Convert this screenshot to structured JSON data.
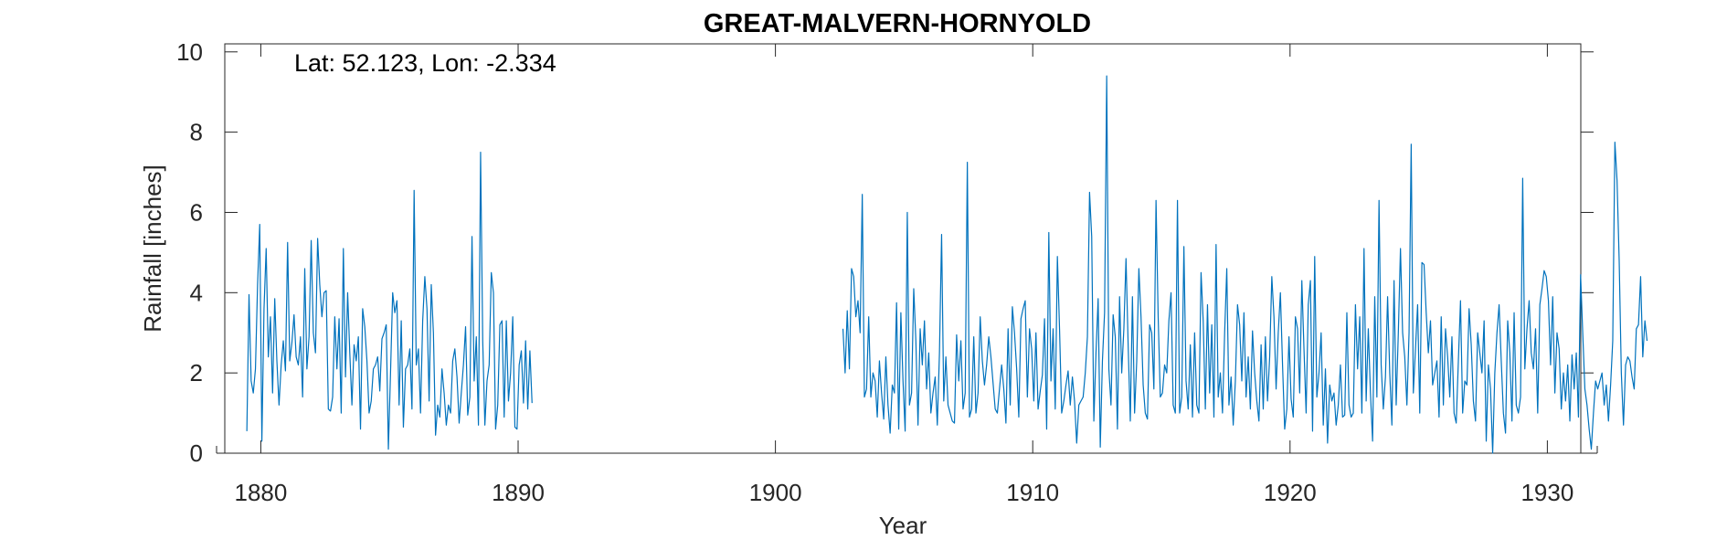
{
  "chart_data": {
    "type": "line",
    "title": "GREAT-MALVERN-HORNYOLD",
    "xlabel": "Year",
    "ylabel": "Rainfall [inches]",
    "annotation": "Lat: 52.123, Lon: -2.334",
    "xlim": [
      1878.6,
      1931.3
    ],
    "ylim": [
      0,
      10.2
    ],
    "xticks": [
      1880,
      1890,
      1900,
      1910,
      1920,
      1930
    ],
    "yticks": [
      0,
      2,
      4,
      6,
      8,
      10
    ],
    "grid": false,
    "box": true,
    "series_color": "#0072BD",
    "series": [
      {
        "segments": [
          {
            "start_year": 1879.458,
            "step_years": 0.0833333,
            "values": [
              0.55,
              3.95,
              1.8,
              1.5,
              2.1,
              4.2,
              5.7,
              0.3,
              3.6,
              5.1,
              2.4,
              3.4,
              1.5,
              3.85,
              2.3,
              1.2,
              2.2,
              2.8,
              2.05,
              5.25,
              2.3,
              2.75,
              3.45,
              2.4,
              2.2,
              2.9,
              1.4,
              4.6,
              2.1,
              2.9,
              5.3,
              3.0,
              2.5,
              5.35,
              4.2,
              3.4,
              4.0,
              4.05,
              1.1,
              1.05,
              1.4,
              3.4,
              2.1,
              3.35,
              1.0,
              5.1,
              1.9,
              4.0,
              2.5,
              1.2,
              2.7,
              2.3,
              2.9,
              0.6,
              3.6,
              3.15,
              2.3,
              1.0,
              1.3,
              2.1,
              2.2,
              2.4,
              1.55,
              2.85,
              3.0,
              3.2,
              0.1,
              2.0,
              4.0,
              3.5,
              3.8,
              1.2,
              3.3,
              0.65,
              2.1,
              2.2,
              2.6,
              1.1,
              6.55,
              2.2,
              2.6,
              1.0,
              3.3,
              4.4,
              3.6,
              1.3,
              4.2,
              3.0,
              0.45,
              1.2,
              0.9,
              2.1,
              1.5,
              0.7,
              1.2,
              1.0,
              2.3,
              2.6,
              1.9,
              0.75,
              1.5,
              2.2,
              3.15,
              0.95,
              1.4,
              5.4,
              1.8,
              2.9,
              0.7,
              7.5,
              2.8,
              0.7,
              1.8,
              2.2,
              4.5,
              4.0,
              0.6,
              1.2,
              3.2,
              3.3,
              0.9,
              3.3,
              1.3,
              2.0,
              3.4,
              0.65,
              0.6,
              2.2,
              2.55,
              1.25,
              2.8,
              1.1,
              2.55,
              1.25
            ]
          },
          {
            "start_year": 1902.625,
            "step_years": 0.0833333,
            "values": [
              3.1,
              2.0,
              3.55,
              2.1,
              4.6,
              4.4,
              3.4,
              3.8,
              3.0,
              6.45,
              1.4,
              1.6,
              3.4,
              1.4,
              2.0,
              1.8,
              0.9,
              2.3,
              1.5,
              0.85,
              2.4,
              1.2,
              0.5,
              1.7,
              1.5,
              3.75,
              0.6,
              3.5,
              1.8,
              0.55,
              6.0,
              1.2,
              1.5,
              4.1,
              2.8,
              0.7,
              3.1,
              2.2,
              3.3,
              1.6,
              2.5,
              1.0,
              1.5,
              1.9,
              0.7,
              2.5,
              5.45,
              1.3,
              2.4,
              1.2,
              1.0,
              0.8,
              0.75,
              2.95,
              1.8,
              2.8,
              1.1,
              1.5,
              7.25,
              0.9,
              1.1,
              2.9,
              1.0,
              1.5,
              3.4,
              2.3,
              1.7,
              2.2,
              2.9,
              2.4,
              1.75,
              1.1,
              1.0,
              1.6,
              2.2,
              1.6,
              0.75,
              3.1,
              1.2,
              3.65,
              3.0,
              2.1,
              0.9,
              3.35,
              3.6,
              3.8,
              1.4,
              3.1,
              2.6,
              1.3,
              3.0,
              1.1,
              1.55,
              1.95,
              3.35,
              0.6,
              5.5,
              1.8,
              3.1,
              1.1,
              4.9,
              3.1,
              1.0,
              1.3,
              1.7,
              2.05,
              1.2,
              1.9,
              1.3,
              0.25,
              1.2,
              1.3,
              1.4,
              2.0,
              2.9,
              6.5,
              5.4,
              0.8,
              2.5,
              3.85,
              0.15,
              2.3,
              3.5,
              9.4,
              2.1,
              1.2,
              3.45,
              2.9,
              0.6,
              3.9,
              2.0,
              3.1,
              4.85,
              2.7,
              0.8,
              3.9,
              1.0,
              2.3,
              4.6,
              3.4,
              1.7,
              1.0,
              0.85,
              3.2,
              3.0,
              1.6,
              6.3,
              3.4,
              1.4,
              1.5,
              2.2,
              2.0,
              3.3,
              4.0,
              1.2,
              1.0,
              6.3,
              1.0,
              1.4,
              5.15,
              1.8,
              1.1,
              2.7,
              0.9,
              3.0,
              1.2,
              1.0,
              4.5,
              3.3,
              1.1,
              3.7,
              1.5,
              3.2,
              0.9,
              5.2,
              1.4,
              2.0,
              1.0,
              3.0,
              4.6,
              1.2,
              1.9,
              0.7,
              1.8,
              3.7,
              3.2,
              1.8,
              3.5,
              1.4,
              2.4,
              1.1,
              3.05,
              2.0,
              1.3,
              0.8,
              2.7,
              1.1,
              2.9,
              1.3,
              2.4,
              4.4,
              3.4,
              1.6,
              3.0,
              4.0,
              2.2,
              0.6,
              1.1,
              2.9,
              1.35,
              0.9,
              3.4,
              3.1,
              1.5,
              4.3,
              2.6,
              1.0,
              3.7,
              4.3,
              0.55,
              4.9,
              1.4,
              2.0,
              3.0,
              0.7,
              2.1,
              0.25,
              1.7,
              1.3,
              1.5,
              0.7,
              1.2,
              2.2,
              0.9,
              0.95,
              3.5,
              1.2,
              0.9,
              1.0,
              3.7,
              2.1,
              3.4,
              1.0,
              5.1,
              1.3,
              3.1,
              1.5,
              0.3,
              3.9,
              1.4,
              6.3,
              2.2,
              1.1,
              1.9,
              3.9,
              2.0,
              0.7,
              4.3,
              1.2,
              3.0,
              5.1,
              3.0,
              2.4,
              1.2,
              3.0,
              7.7,
              1.5,
              2.6,
              3.7,
              1.0,
              4.75,
              4.7,
              3.5,
              2.5,
              3.3,
              1.7,
              2.0,
              2.3,
              0.9,
              3.4,
              1.2,
              3.1,
              2.4,
              1.4,
              2.9,
              1.0,
              0.75,
              2.3,
              3.8,
              1.0,
              1.8,
              1.7,
              3.6,
              2.7,
              1.3,
              0.8,
              3.0,
              2.5,
              2.0,
              3.3,
              0.3,
              2.2,
              1.6,
              0.0,
              2.0,
              3.0,
              3.7,
              2.3,
              1.0,
              0.5,
              3.3,
              2.5,
              0.8,
              3.5,
              1.2,
              1.0,
              1.4,
              6.85,
              2.1,
              3.1,
              3.8,
              2.5,
              2.1,
              3.1,
              1.0,
              3.7,
              4.1,
              4.55,
              4.4,
              3.8,
              2.2,
              3.9,
              1.5,
              3.0,
              2.6,
              1.1,
              2.0,
              1.3,
              2.2,
              0.8,
              2.45,
              1.6,
              2.5,
              0.9,
              4.45,
              3.0,
              1.6,
              1.2,
              0.6,
              0.1,
              1.0,
              1.8,
              1.6,
              1.8,
              2.0,
              1.2,
              1.7,
              0.8,
              1.7,
              2.8,
              7.75,
              6.8,
              4.8,
              2.0,
              0.7,
              2.2,
              2.4,
              2.3,
              1.9,
              1.6,
              3.1,
              3.2,
              4.4,
              2.4,
              3.3,
              2.8
            ]
          }
        ]
      }
    ]
  }
}
